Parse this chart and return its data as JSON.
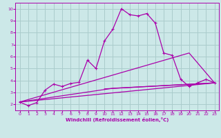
{
  "xlabel": "Windchill (Refroidissement éolien,°C)",
  "xlim": [
    -0.5,
    23.5
  ],
  "ylim": [
    1.5,
    10.5
  ],
  "xticks": [
    0,
    1,
    2,
    3,
    4,
    5,
    6,
    7,
    8,
    9,
    10,
    11,
    12,
    13,
    14,
    15,
    16,
    17,
    18,
    19,
    20,
    21,
    22,
    23
  ],
  "yticks": [
    2,
    3,
    4,
    5,
    6,
    7,
    8,
    9,
    10
  ],
  "bg_color": "#cce8e8",
  "line_color": "#aa00aa",
  "grid_color": "#aacccc",
  "series1_x": [
    0,
    1,
    2,
    3,
    4,
    5,
    6,
    7,
    8,
    9,
    10,
    11,
    12,
    13,
    14,
    15,
    16,
    17,
    18,
    19,
    20,
    21,
    22,
    23
  ],
  "series1_y": [
    2.2,
    1.9,
    2.15,
    3.2,
    3.7,
    3.5,
    3.75,
    3.85,
    5.7,
    5.0,
    7.3,
    8.3,
    10.0,
    9.5,
    9.4,
    9.6,
    8.8,
    6.3,
    6.1,
    4.1,
    3.5,
    3.8,
    4.1,
    3.8
  ],
  "series2_x": [
    0,
    23
  ],
  "series2_y": [
    2.2,
    3.8
  ],
  "series3_x": [
    0,
    20,
    23
  ],
  "series3_y": [
    2.2,
    6.3,
    3.8
  ],
  "series4_x": [
    0,
    11,
    23
  ],
  "series4_y": [
    2.2,
    3.35,
    3.8
  ],
  "series5_x": [
    10,
    23
  ],
  "series5_y": [
    3.3,
    3.8
  ]
}
